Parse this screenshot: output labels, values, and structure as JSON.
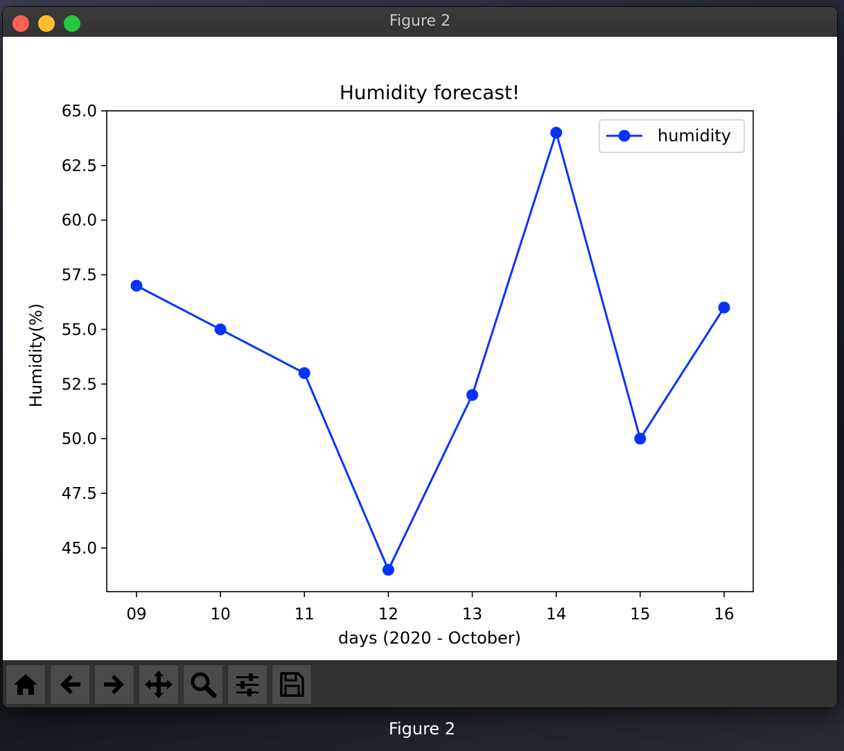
{
  "window": {
    "title": "Figure 2",
    "caption": "Figure 2"
  },
  "toolbar": {
    "buttons": [
      {
        "icon": "home-icon",
        "name": "home-button"
      },
      {
        "icon": "back-arrow-icon",
        "name": "back-button"
      },
      {
        "icon": "forward-arrow-icon",
        "name": "forward-button"
      },
      {
        "icon": "pan-move-icon",
        "name": "pan-button"
      },
      {
        "icon": "zoom-magnifier-icon",
        "name": "zoom-button"
      },
      {
        "icon": "configure-subplots-icon",
        "name": "configure-subplots-button"
      },
      {
        "icon": "save-floppy-icon",
        "name": "save-button"
      }
    ]
  },
  "chart_data": {
    "type": "line",
    "title": "Humidity forecast!",
    "xlabel": "days (2020 - October)",
    "ylabel": "Humidity(%)",
    "categories": [
      "09",
      "10",
      "11",
      "12",
      "13",
      "14",
      "15",
      "16"
    ],
    "series": [
      {
        "name": "humidity",
        "values": [
          57,
          55,
          53,
          44,
          52,
          64,
          50,
          56
        ],
        "color": "#0433ff",
        "marker": "circle"
      }
    ],
    "ylim": [
      43,
      65
    ],
    "yticks": [
      "45.0",
      "47.5",
      "50.0",
      "52.5",
      "55.0",
      "57.5",
      "60.0",
      "62.5",
      "65.0"
    ],
    "legend": "top-right",
    "grid": false
  }
}
